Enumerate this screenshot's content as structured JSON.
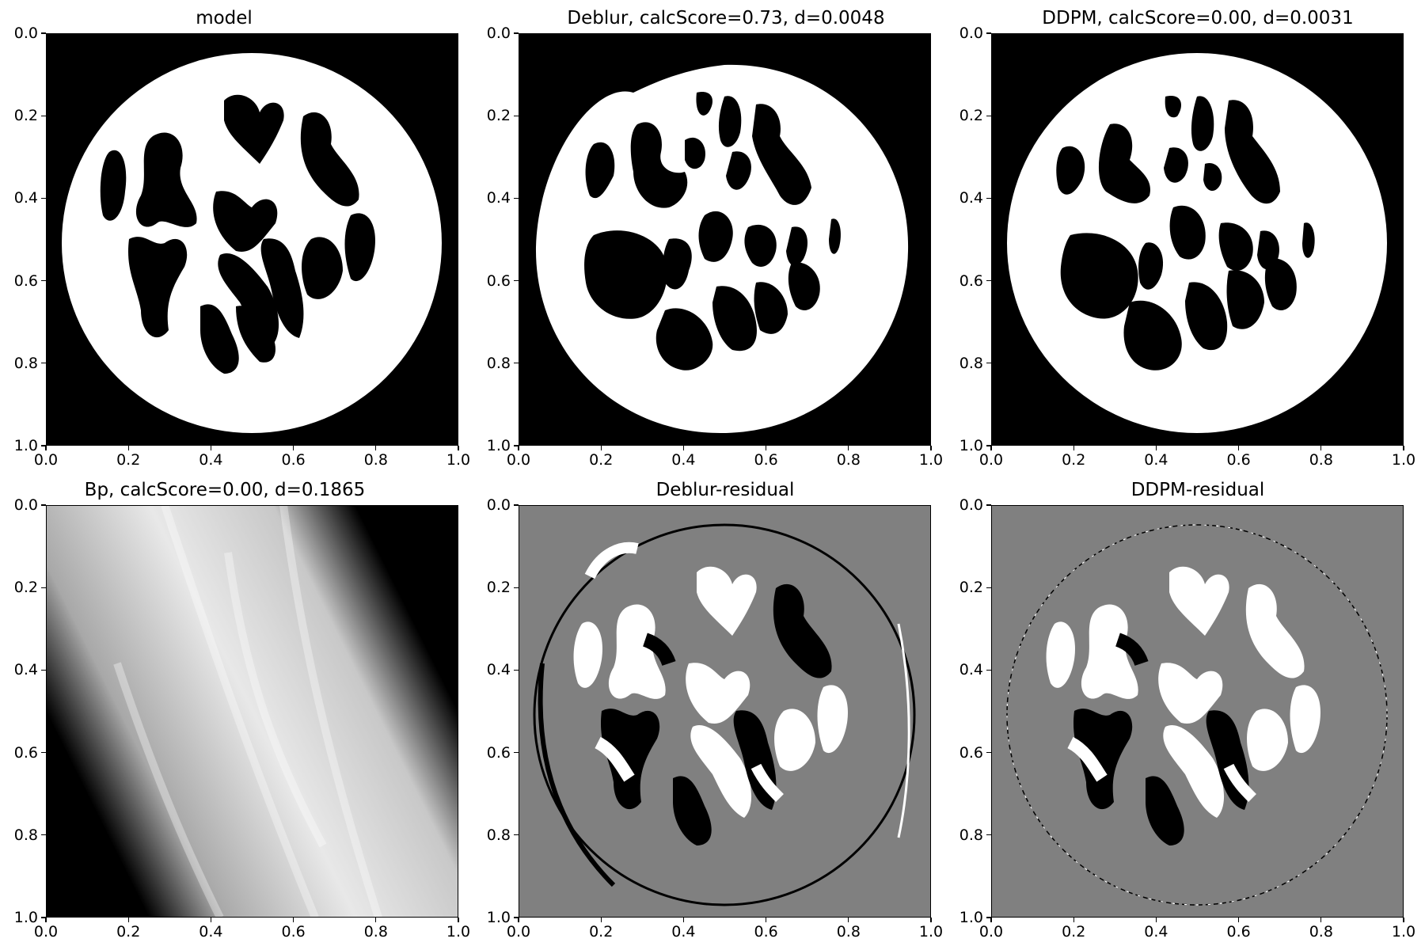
{
  "figure": {
    "panels": [
      {
        "key": "model",
        "title": "model",
        "kind": "binary"
      },
      {
        "key": "deblur",
        "title": "Deblur, calcScore=0.73, d=0.0048",
        "kind": "binary"
      },
      {
        "key": "ddpm",
        "title": "DDPM, calcScore=0.00, d=0.0031",
        "kind": "binary"
      },
      {
        "key": "bp",
        "title": "Bp, calcScore=0.00, d=0.1865",
        "kind": "backprojection"
      },
      {
        "key": "deblur_residual",
        "title": "Deblur-residual",
        "kind": "residual"
      },
      {
        "key": "ddpm_residual",
        "title": "DDPM-residual",
        "kind": "residual"
      }
    ],
    "x_ticks": [
      "0.0",
      "0.2",
      "0.4",
      "0.6",
      "0.8",
      "1.0"
    ],
    "y_ticks": [
      "0.0",
      "0.2",
      "0.4",
      "0.6",
      "0.8",
      "1.0"
    ],
    "colors": {
      "background": "#000000",
      "disk": "#ffffff",
      "residual_gray": "#808080"
    }
  }
}
